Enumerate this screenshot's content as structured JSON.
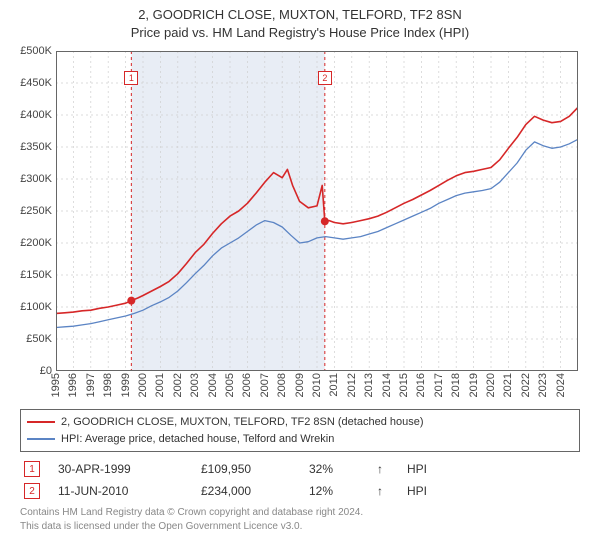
{
  "title": {
    "line1": "2, GOODRICH CLOSE, MUXTON, TELFORD, TF2 8SN",
    "line2": "Price paid vs. HM Land Registry's House Price Index (HPI)"
  },
  "chart": {
    "type": "line",
    "background_color": "#ffffff",
    "grid_color": "#cfcfcf",
    "grid_dash": "2,3",
    "border_color": "#666666",
    "xlim": [
      1995,
      2025
    ],
    "ylim": [
      0,
      500000
    ],
    "ytick_step": 50000,
    "yticks": [
      "£0",
      "£50K",
      "£100K",
      "£150K",
      "£200K",
      "£250K",
      "£300K",
      "£350K",
      "£400K",
      "£450K",
      "£500K"
    ],
    "xticks": [
      1995,
      1996,
      1997,
      1998,
      1999,
      2000,
      2001,
      2002,
      2003,
      2004,
      2005,
      2006,
      2007,
      2008,
      2009,
      2010,
      2011,
      2012,
      2013,
      2014,
      2015,
      2016,
      2017,
      2018,
      2019,
      2020,
      2021,
      2022,
      2023,
      2024
    ],
    "shaded_band": {
      "start": 1999.33,
      "end": 2010.45,
      "fill": "#e8edf5"
    },
    "event_lines": [
      {
        "x": 1999.33,
        "color": "#d62728",
        "dash": "3,3"
      },
      {
        "x": 2010.45,
        "color": "#d62728",
        "dash": "3,3"
      }
    ],
    "markers": [
      {
        "label": "1",
        "x": 1999.33,
        "y_top": 20,
        "border": "#d62728",
        "text_color": "#d62728"
      },
      {
        "label": "2",
        "x": 2010.45,
        "y_top": 20,
        "border": "#d62728",
        "text_color": "#d62728"
      }
    ],
    "points": [
      {
        "x": 1999.33,
        "y": 109950,
        "color": "#d62728",
        "r": 4
      },
      {
        "x": 2010.45,
        "y": 234000,
        "color": "#d62728",
        "r": 4
      }
    ],
    "series": [
      {
        "name": "property",
        "label": "2, GOODRICH CLOSE, MUXTON, TELFORD, TF2 8SN (detached house)",
        "color": "#d62728",
        "width": 1.6,
        "data": [
          [
            1995.0,
            90000
          ],
          [
            1995.5,
            91000
          ],
          [
            1996.0,
            92000
          ],
          [
            1996.5,
            94000
          ],
          [
            1997.0,
            95000
          ],
          [
            1997.5,
            98000
          ],
          [
            1998.0,
            100000
          ],
          [
            1998.5,
            103000
          ],
          [
            1999.0,
            106000
          ],
          [
            1999.33,
            109950
          ],
          [
            1999.7,
            114000
          ],
          [
            2000.0,
            118000
          ],
          [
            2000.5,
            125000
          ],
          [
            2001.0,
            132000
          ],
          [
            2001.5,
            140000
          ],
          [
            2002.0,
            152000
          ],
          [
            2002.5,
            168000
          ],
          [
            2003.0,
            185000
          ],
          [
            2003.5,
            198000
          ],
          [
            2004.0,
            215000
          ],
          [
            2004.5,
            230000
          ],
          [
            2005.0,
            242000
          ],
          [
            2005.5,
            250000
          ],
          [
            2006.0,
            262000
          ],
          [
            2006.5,
            278000
          ],
          [
            2007.0,
            295000
          ],
          [
            2007.5,
            310000
          ],
          [
            2008.0,
            302000
          ],
          [
            2008.3,
            315000
          ],
          [
            2008.6,
            290000
          ],
          [
            2009.0,
            265000
          ],
          [
            2009.5,
            255000
          ],
          [
            2010.0,
            258000
          ],
          [
            2010.3,
            290000
          ],
          [
            2010.45,
            234000
          ],
          [
            2010.7,
            235000
          ],
          [
            2011.0,
            232000
          ],
          [
            2011.5,
            230000
          ],
          [
            2012.0,
            232000
          ],
          [
            2012.5,
            235000
          ],
          [
            2013.0,
            238000
          ],
          [
            2013.5,
            242000
          ],
          [
            2014.0,
            248000
          ],
          [
            2014.5,
            255000
          ],
          [
            2015.0,
            262000
          ],
          [
            2015.5,
            268000
          ],
          [
            2016.0,
            275000
          ],
          [
            2016.5,
            282000
          ],
          [
            2017.0,
            290000
          ],
          [
            2017.5,
            298000
          ],
          [
            2018.0,
            305000
          ],
          [
            2018.5,
            310000
          ],
          [
            2019.0,
            312000
          ],
          [
            2019.5,
            315000
          ],
          [
            2020.0,
            318000
          ],
          [
            2020.5,
            330000
          ],
          [
            2021.0,
            348000
          ],
          [
            2021.5,
            365000
          ],
          [
            2022.0,
            385000
          ],
          [
            2022.5,
            398000
          ],
          [
            2023.0,
            392000
          ],
          [
            2023.5,
            388000
          ],
          [
            2024.0,
            390000
          ],
          [
            2024.5,
            398000
          ],
          [
            2025.0,
            412000
          ]
        ]
      },
      {
        "name": "hpi",
        "label": "HPI: Average price, detached house, Telford and Wrekin",
        "color": "#5b84c4",
        "width": 1.3,
        "data": [
          [
            1995.0,
            68000
          ],
          [
            1995.5,
            69000
          ],
          [
            1996.0,
            70000
          ],
          [
            1996.5,
            72000
          ],
          [
            1997.0,
            74000
          ],
          [
            1997.5,
            77000
          ],
          [
            1998.0,
            80000
          ],
          [
            1998.5,
            83000
          ],
          [
            1999.0,
            86000
          ],
          [
            1999.5,
            90000
          ],
          [
            2000.0,
            95000
          ],
          [
            2000.5,
            102000
          ],
          [
            2001.0,
            108000
          ],
          [
            2001.5,
            115000
          ],
          [
            2002.0,
            125000
          ],
          [
            2002.5,
            138000
          ],
          [
            2003.0,
            152000
          ],
          [
            2003.5,
            165000
          ],
          [
            2004.0,
            180000
          ],
          [
            2004.5,
            192000
          ],
          [
            2005.0,
            200000
          ],
          [
            2005.5,
            208000
          ],
          [
            2006.0,
            218000
          ],
          [
            2006.5,
            228000
          ],
          [
            2007.0,
            235000
          ],
          [
            2007.5,
            232000
          ],
          [
            2008.0,
            225000
          ],
          [
            2008.5,
            212000
          ],
          [
            2009.0,
            200000
          ],
          [
            2009.5,
            202000
          ],
          [
            2010.0,
            208000
          ],
          [
            2010.5,
            210000
          ],
          [
            2011.0,
            208000
          ],
          [
            2011.5,
            206000
          ],
          [
            2012.0,
            208000
          ],
          [
            2012.5,
            210000
          ],
          [
            2013.0,
            214000
          ],
          [
            2013.5,
            218000
          ],
          [
            2014.0,
            224000
          ],
          [
            2014.5,
            230000
          ],
          [
            2015.0,
            236000
          ],
          [
            2015.5,
            242000
          ],
          [
            2016.0,
            248000
          ],
          [
            2016.5,
            254000
          ],
          [
            2017.0,
            262000
          ],
          [
            2017.5,
            268000
          ],
          [
            2018.0,
            274000
          ],
          [
            2018.5,
            278000
          ],
          [
            2019.0,
            280000
          ],
          [
            2019.5,
            282000
          ],
          [
            2020.0,
            285000
          ],
          [
            2020.5,
            295000
          ],
          [
            2021.0,
            310000
          ],
          [
            2021.5,
            325000
          ],
          [
            2022.0,
            345000
          ],
          [
            2022.5,
            358000
          ],
          [
            2023.0,
            352000
          ],
          [
            2023.5,
            348000
          ],
          [
            2024.0,
            350000
          ],
          [
            2024.5,
            355000
          ],
          [
            2025.0,
            362000
          ]
        ]
      }
    ]
  },
  "legend": {
    "border_color": "#666666",
    "items": [
      {
        "color": "#d62728",
        "text": "2, GOODRICH CLOSE, MUXTON, TELFORD, TF2 8SN (detached house)"
      },
      {
        "color": "#5b84c4",
        "text": "HPI: Average price, detached house, Telford and Wrekin"
      }
    ]
  },
  "events": [
    {
      "n": "1",
      "date": "30-APR-1999",
      "price": "£109,950",
      "pct": "32%",
      "dir": "↑",
      "ref": "HPI",
      "color": "#d62728"
    },
    {
      "n": "2",
      "date": "11-JUN-2010",
      "price": "£234,000",
      "pct": "12%",
      "dir": "↑",
      "ref": "HPI",
      "color": "#d62728"
    }
  ],
  "footer": {
    "line1": "Contains HM Land Registry data © Crown copyright and database right 2024.",
    "line2": "This data is licensed under the Open Government Licence v3.0.",
    "color": "#888888"
  }
}
